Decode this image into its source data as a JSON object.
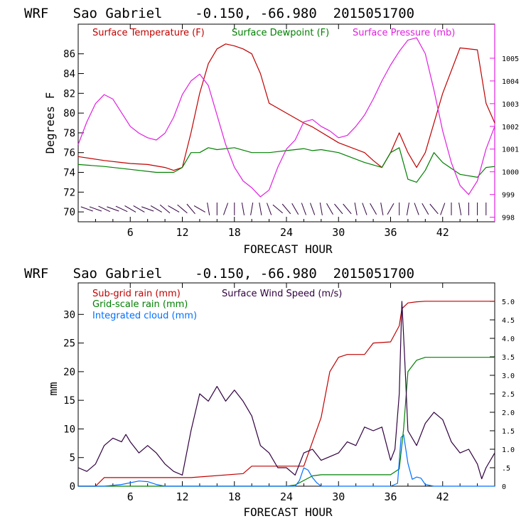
{
  "chart_data": [
    {
      "type": "line",
      "title": "WRF   Sao Gabriel    -0.150, -66.980  2015051700",
      "xlabel": "FORECAST HOUR",
      "ylabel": "Degrees F",
      "xlim": [
        0,
        48
      ],
      "ylim": [
        69,
        89
      ],
      "y2lim": [
        997.8,
        1006.5
      ],
      "xticks": [
        6,
        12,
        18,
        24,
        30,
        36,
        42
      ],
      "xtick_labels": [
        "6",
        "12",
        "18",
        "24",
        "30",
        "36",
        "42"
      ],
      "yticks": [
        70,
        72,
        74,
        76,
        78,
        80,
        82,
        84,
        86
      ],
      "ytick_labels": [
        "70",
        "72",
        "74",
        "76",
        "78",
        "80",
        "82",
        "84",
        "86"
      ],
      "y2ticks": [
        998,
        999,
        1000,
        1001,
        1002,
        1003,
        1004,
        1005
      ],
      "y2tick_labels": [
        "998",
        "999",
        "1000",
        "1001",
        "1002",
        "1003",
        "1004",
        "1005"
      ],
      "series": [
        {
          "name": "Surface Temperature (F)",
          "color": "#c00000",
          "x": [
            0,
            3,
            5,
            6,
            8,
            10,
            11,
            12,
            13,
            14,
            15,
            16,
            17,
            18,
            19,
            20,
            21,
            22,
            24,
            26,
            27,
            30,
            33,
            34,
            35,
            36,
            37,
            38,
            39,
            40,
            42,
            44,
            46,
            47,
            48
          ],
          "y": [
            75.6,
            75.2,
            75.0,
            74.9,
            74.8,
            74.5,
            74.2,
            74.5,
            78,
            82,
            85,
            86.5,
            87,
            86.8,
            86.5,
            86,
            84,
            81,
            80,
            79,
            78.6,
            77,
            76,
            75.2,
            74.5,
            76,
            78,
            76,
            74.5,
            76,
            82,
            86.6,
            86.4,
            81,
            79
          ]
        },
        {
          "name": "Surface Dewpoint (F)",
          "color": "#008000",
          "x": [
            0,
            3,
            6,
            9,
            11,
            12,
            13,
            14,
            15,
            16,
            18,
            20,
            22,
            24,
            26,
            27,
            28,
            30,
            33,
            35,
            36,
            37,
            38,
            39,
            40,
            41,
            42,
            44,
            46,
            47,
            48
          ],
          "y": [
            74.8,
            74.6,
            74.3,
            74.0,
            74.0,
            74.5,
            76,
            76,
            76.5,
            76.3,
            76.5,
            76,
            76,
            76.2,
            76.4,
            76.2,
            76.3,
            76,
            75,
            74.5,
            76,
            76.5,
            73.3,
            73,
            74.2,
            76,
            75,
            73.8,
            73.5,
            74.5,
            74.6
          ]
        },
        {
          "name": "Surface Pressure (mb)",
          "color": "#e020e0",
          "axis": "right",
          "x": [
            0,
            1,
            2,
            3,
            4,
            5,
            6,
            7,
            8,
            9,
            10,
            11,
            12,
            13,
            14,
            15,
            16,
            17,
            18,
            19,
            20,
            21,
            22,
            23,
            24,
            25,
            26,
            27,
            28,
            29,
            30,
            31,
            32,
            33,
            34,
            35,
            36,
            37,
            38,
            39,
            40,
            41,
            42,
            43,
            44,
            45,
            46,
            47,
            48
          ],
          "y": [
            1001.2,
            1002.2,
            1003,
            1003.4,
            1003.2,
            1002.6,
            1002,
            1001.7,
            1001.5,
            1001.4,
            1001.7,
            1002.4,
            1003.4,
            1004.0,
            1004.3,
            1003.8,
            1002.5,
            1001.2,
            1000.2,
            999.6,
            999.3,
            998.9,
            999.2,
            1000.2,
            1001.0,
            1001.4,
            1002.2,
            1002.3,
            1002.0,
            1001.8,
            1001.5,
            1001.6,
            1002.0,
            1002.5,
            1003.2,
            1004.0,
            1004.7,
            1005.3,
            1005.8,
            1005.9,
            1005.2,
            1003.6,
            1001.8,
            1000.4,
            999.4,
            999.0,
            999.6,
            1001.0,
            1002.0
          ]
        }
      ],
      "wind_barbs": {
        "y": 70.3,
        "angles": [
          160,
          160,
          155,
          160,
          155,
          150,
          150,
          160,
          150,
          140,
          150,
          140,
          130,
          150,
          100,
          90,
          70,
          90,
          100,
          80,
          100,
          110,
          140,
          130,
          120,
          110,
          110,
          100,
          120,
          130,
          130,
          100,
          110,
          120,
          100,
          60,
          90,
          80,
          110,
          120,
          130,
          70,
          90,
          100,
          90,
          90,
          90
        ]
      }
    },
    {
      "type": "line",
      "title": "WRF   Sao Gabriel    -0.150, -66.980  2015051700",
      "xlabel": "FORECAST HOUR",
      "ylabel": "mm",
      "xlim": [
        0,
        48
      ],
      "ylim": [
        0,
        35.5
      ],
      "y2lim": [
        0,
        5.5
      ],
      "xticks": [
        6,
        12,
        18,
        24,
        30,
        36,
        42
      ],
      "xtick_labels": [
        "6",
        "12",
        "18",
        "24",
        "30",
        "36",
        "42"
      ],
      "yticks": [
        0,
        5,
        10,
        15,
        20,
        25,
        30
      ],
      "ytick_labels": [
        "0",
        "5",
        "10",
        "15",
        "20",
        "25",
        "30"
      ],
      "y2ticks": [
        0,
        0.5,
        1.0,
        1.5,
        2.0,
        2.5,
        3.0,
        3.5,
        4.0,
        4.5,
        5.0
      ],
      "y2tick_labels": [
        "0",
        ".5",
        "1.0",
        "1.5",
        "2.0",
        "2.5",
        "3.0",
        "3.5",
        "4.0",
        "4.5",
        "5.0"
      ],
      "series": [
        {
          "name": "Sub-grid rain (mm)",
          "color": "#c00000",
          "x": [
            0,
            2,
            3,
            13,
            19,
            20,
            26,
            28,
            29,
            30,
            31,
            33,
            34,
            36,
            37,
            37.3,
            38,
            39,
            40,
            48
          ],
          "y": [
            0,
            0,
            1.5,
            1.5,
            2.2,
            3.5,
            3.5,
            12,
            20,
            22.5,
            23,
            23,
            25,
            25.2,
            28,
            31,
            32,
            32.2,
            32.3,
            32.3
          ]
        },
        {
          "name": "Grid-scale rain (mm)",
          "color": "#008000",
          "x": [
            0,
            24,
            25,
            27,
            28,
            36,
            37,
            37.5,
            38,
            39,
            40,
            48
          ],
          "y": [
            0,
            0,
            0.2,
            1.8,
            2.0,
            2.0,
            3,
            10,
            20,
            22,
            22.5,
            22.5
          ]
        },
        {
          "name": "Integrated cloud (mm)",
          "color": "#0070ff",
          "x": [
            0,
            3,
            5,
            7,
            8,
            9,
            10,
            25,
            25.5,
            26,
            26.5,
            27,
            27.5,
            28,
            36,
            36.8,
            37.2,
            37.5,
            38,
            38.5,
            39,
            39.5,
            40,
            41,
            48
          ],
          "y": [
            0,
            0,
            0.3,
            0.9,
            0.8,
            0.3,
            0,
            0,
            1,
            3.2,
            2.8,
            1.5,
            0.6,
            0,
            0,
            0.5,
            8.5,
            9,
            4,
            1.2,
            1.6,
            1.4,
            0.3,
            0,
            0
          ]
        },
        {
          "name": "Surface Wind Speed (m/s)",
          "color": "#300040",
          "axis": "right",
          "x": [
            0,
            1,
            2,
            3,
            4,
            5,
            5.5,
            6,
            7,
            8,
            9,
            10,
            11,
            12,
            13,
            14,
            15,
            16,
            17,
            18,
            19,
            20,
            21,
            22,
            23,
            24,
            25,
            26,
            27,
            28,
            29,
            30,
            31,
            32,
            33,
            34,
            35,
            36,
            36.5,
            37,
            37.3,
            37.6,
            38,
            39,
            40,
            41,
            42,
            43,
            44,
            45,
            46,
            46.5,
            47,
            48
          ],
          "y": [
            0.5,
            0.4,
            0.6,
            1.1,
            1.3,
            1.2,
            1.4,
            1.2,
            0.9,
            1.1,
            0.9,
            0.6,
            0.4,
            0.3,
            1.5,
            2.5,
            2.3,
            2.7,
            2.3,
            2.6,
            2.3,
            1.9,
            1.1,
            0.9,
            0.5,
            0.5,
            0.3,
            0.9,
            1.0,
            0.7,
            0.8,
            0.9,
            1.2,
            1.1,
            1.6,
            1.5,
            1.6,
            0.7,
            1.0,
            2.5,
            5.0,
            3.6,
            1.5,
            1.1,
            1.7,
            2.0,
            1.8,
            1.2,
            0.9,
            1.0,
            0.6,
            0.2,
            0.5,
            0.9
          ]
        }
      ]
    }
  ]
}
